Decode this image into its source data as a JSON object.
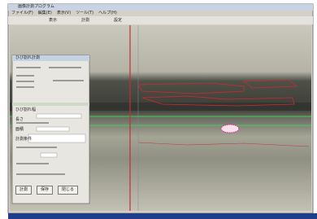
{
  "window": {
    "title": "画像計測プログラム",
    "menu": [
      "ファイル(F)",
      "編集(E)",
      "表示(V)",
      "ツール(T)",
      "ヘルプ(H)"
    ],
    "toolbar": [
      "表示",
      "計測",
      "設定"
    ]
  },
  "dialog": {
    "title": "ひび割れ計測",
    "labels": [
      "ひび割れ幅",
      "長さ",
      "面積",
      "計測条件"
    ],
    "buttons": [
      "計測",
      "保存",
      "閉じる"
    ]
  }
}
